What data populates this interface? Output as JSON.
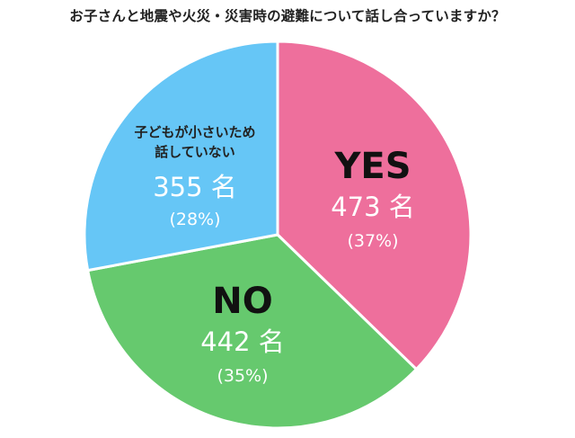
{
  "chart_data": {
    "type": "pie",
    "title": "お子さんと地震や火災・災害時の避難について話し合っていますか？",
    "slices": [
      {
        "label": "YES",
        "label_lines": [
          "YES"
        ],
        "count_text": "473 名",
        "pct_text": "(37%)",
        "value": 473,
        "percent": 37,
        "color": "#ee6f9c"
      },
      {
        "label": "NO",
        "label_lines": [
          "NO"
        ],
        "count_text": "442 名",
        "pct_text": "(35%)",
        "value": 442,
        "percent": 35,
        "color": "#66c96e"
      },
      {
        "label": "子どもが小さいため話していない",
        "label_lines": [
          "子どもが小さいため",
          "話していない"
        ],
        "count_text": "355 名",
        "pct_text": "(28%)",
        "value": 355,
        "percent": 28,
        "color": "#66c6f6"
      }
    ]
  }
}
